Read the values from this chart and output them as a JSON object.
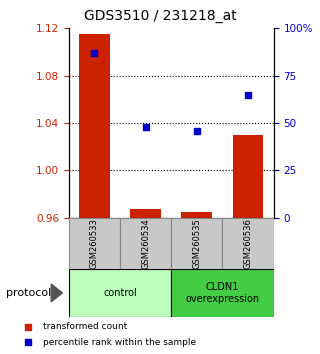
{
  "title": "GDS3510 / 231218_at",
  "samples": [
    "GSM260533",
    "GSM260534",
    "GSM260535",
    "GSM260536"
  ],
  "transformed_counts": [
    1.115,
    0.967,
    0.965,
    1.03
  ],
  "percentile_ranks": [
    87,
    48,
    46,
    65
  ],
  "ylim_left": [
    0.96,
    1.12
  ],
  "ylim_right": [
    0,
    100
  ],
  "yticks_left": [
    0.96,
    1.0,
    1.04,
    1.08,
    1.12
  ],
  "yticks_right": [
    0,
    25,
    50,
    75,
    100
  ],
  "ytick_labels_right": [
    "0",
    "25",
    "50",
    "75",
    "100%"
  ],
  "bar_color": "#cc2200",
  "dot_color": "#0000cc",
  "bar_baseline": 0.96,
  "groups": [
    {
      "label": "control",
      "samples": [
        0,
        1
      ],
      "color": "#bbffbb"
    },
    {
      "label": "CLDN1\noverexpression",
      "samples": [
        2,
        3
      ],
      "color": "#44cc44"
    }
  ],
  "protocol_label": "protocol",
  "legend_items": [
    {
      "color": "#cc2200",
      "label": "transformed count"
    },
    {
      "color": "#0000cc",
      "label": "percentile rank within the sample"
    }
  ],
  "sample_box_color": "#c8c8c8",
  "sample_box_border": "#888888",
  "background_color": "#ffffff"
}
